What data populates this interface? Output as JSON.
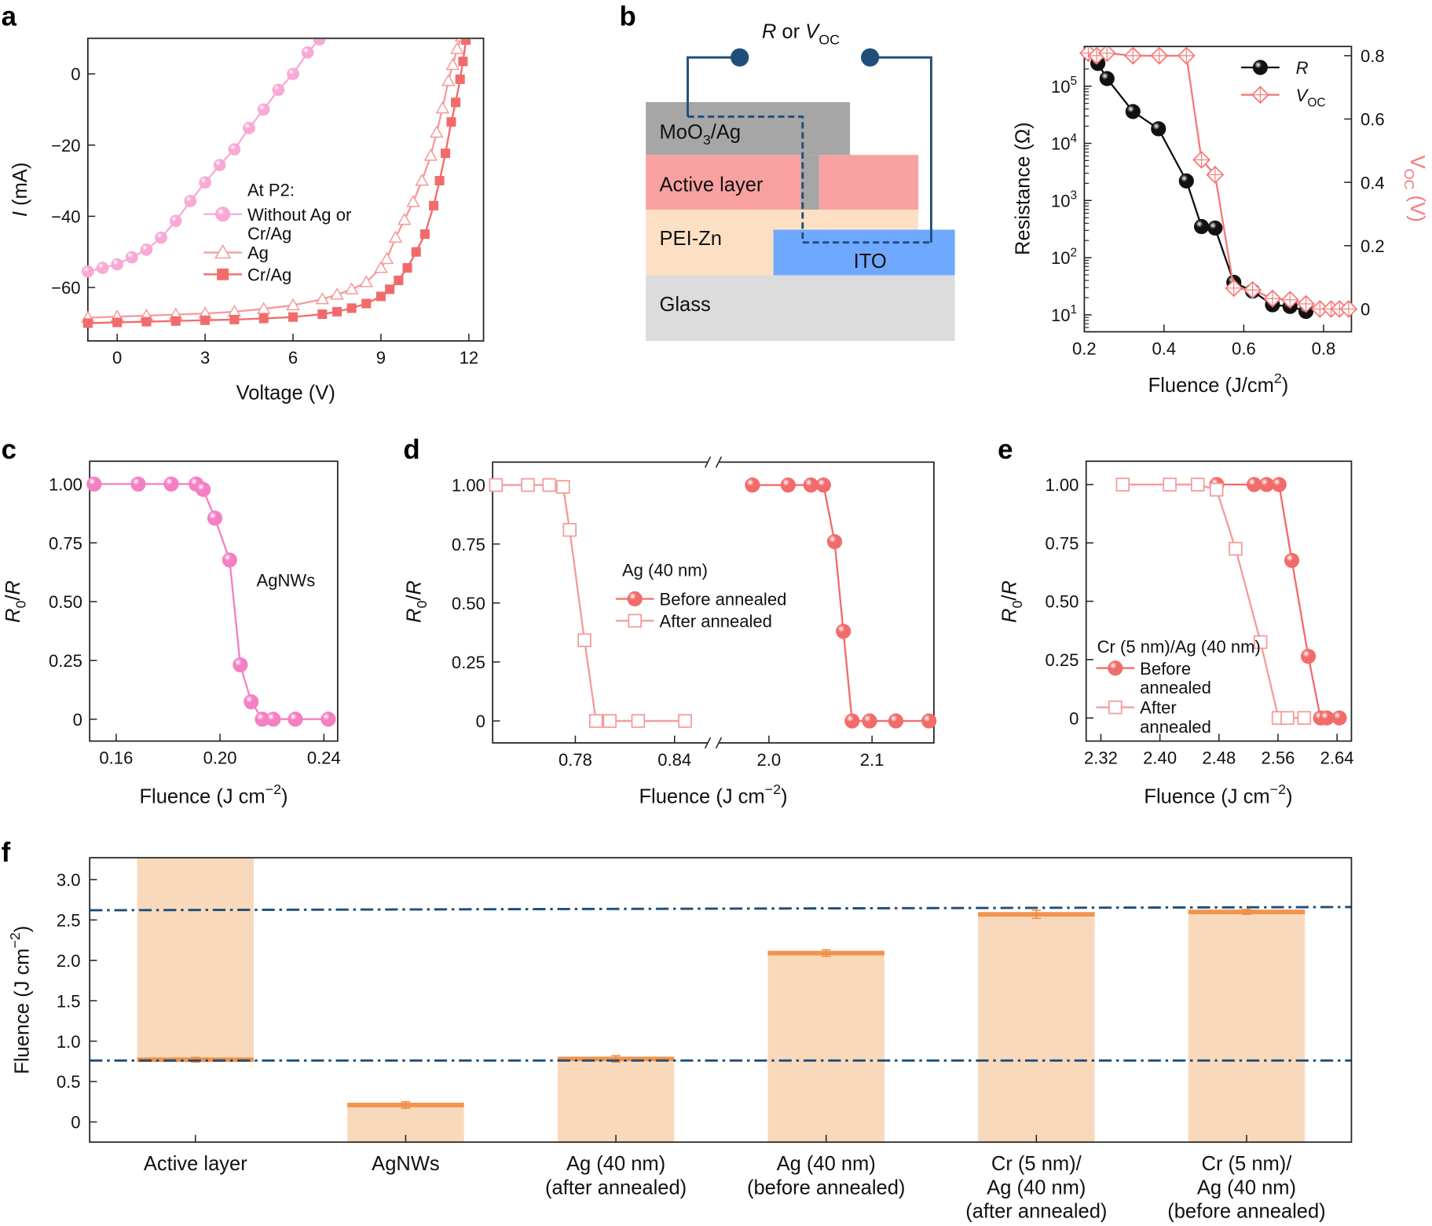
{
  "panel_labels": {
    "a": "a",
    "b": "b",
    "c": "c",
    "d": "d",
    "e": "e",
    "f": "f"
  },
  "diagram_b": {
    "measure_label": "*R* or *V*_{OC}",
    "layers": {
      "top_electrode": "MoO_{3}/Ag",
      "active": "Active layer",
      "pei": "PEI-Zn",
      "ito": "ITO",
      "glass": "Glass"
    },
    "colors": {
      "top_electrode": "#a6a6a6",
      "active": "#f9a1a1",
      "pei": "#fde0c4",
      "ito": "#6fa8ff",
      "glass": "#dcdcdc",
      "wire": "#1f4e79"
    }
  },
  "chart_data": [
    {
      "panel": "a",
      "type": "scatter-line",
      "xlabel": "Voltage (V)",
      "ylabel": "*I* (mA)",
      "xlim": [
        -1,
        12.5
      ],
      "ylim": [
        -75,
        10
      ],
      "xticks": [
        0,
        3,
        6,
        9,
        12
      ],
      "xtick_labels": [
        "0",
        "3",
        "6",
        "9",
        "12"
      ],
      "yticks": [
        0,
        -20,
        -40,
        -60
      ],
      "ytick_labels": [
        "0",
        "−20",
        "−40",
        "−60"
      ],
      "grid": false,
      "legend": {
        "title": "At P2:",
        "placement": "center"
      },
      "series": [
        {
          "name": "Without Ag or\nCr/Ag",
          "marker": "sphere",
          "color": "#f9a9d6",
          "x": [
            -1,
            -0.5,
            0,
            0.5,
            1,
            1.5,
            2,
            2.5,
            3,
            3.5,
            4,
            4.5,
            5,
            5.5,
            6,
            6.5,
            6.9
          ],
          "y": [
            -55.5,
            -54.5,
            -53.5,
            -51.5,
            -49.4,
            -46,
            -41.3,
            -35.7,
            -30.5,
            -25.6,
            -21.2,
            -15.2,
            -10,
            -4.5,
            0,
            6,
            9.7
          ]
        },
        {
          "name": "Ag",
          "marker": "triangle-open",
          "color": "#f59a9a",
          "x": [
            -1,
            0,
            1,
            2,
            3,
            4,
            5,
            6,
            7,
            7.5,
            8,
            8.5,
            9,
            9.2,
            9.5,
            9.8,
            10.1,
            10.4,
            10.7,
            10.9,
            11.1,
            11.3,
            11.45,
            11.6,
            11.75
          ],
          "y": [
            -68.5,
            -68.2,
            -67.9,
            -67.6,
            -67.3,
            -66.8,
            -66,
            -65,
            -63.3,
            -62,
            -60.5,
            -58.5,
            -54.5,
            -52,
            -46,
            -41,
            -36,
            -30,
            -23,
            -16.5,
            -9.7,
            -2,
            2.5,
            7,
            10.5
          ]
        },
        {
          "name": "Cr/Ag",
          "marker": "square",
          "color": "#f26b6b",
          "x": [
            -1,
            0,
            1,
            2,
            3,
            4,
            5,
            6,
            7,
            7.5,
            8,
            8.5,
            9,
            9.3,
            9.6,
            9.9,
            10.2,
            10.5,
            10.8,
            11,
            11.2,
            11.4,
            11.55,
            11.7,
            11.8,
            11.9
          ],
          "y": [
            -70,
            -69.8,
            -69.6,
            -69.4,
            -69.2,
            -69,
            -68.7,
            -68.3,
            -67.5,
            -66.8,
            -65.8,
            -64.5,
            -62.5,
            -60.5,
            -58,
            -54.5,
            -50,
            -45,
            -37,
            -30,
            -22.3,
            -13.5,
            -8,
            -1.5,
            3.5,
            9.5
          ]
        }
      ]
    },
    {
      "panel": "b",
      "type": "scatter-line",
      "xlabel": "Fluence (J/cm^{2})",
      "ylabel": "Resistance (Ω)",
      "ylabel_right": "V_{OC} (V)",
      "xlim": [
        0.2,
        0.87
      ],
      "ylim": [
        5.05,
        495000
      ],
      "y_scale": "log",
      "ylim_right": [
        -0.072,
        0.829
      ],
      "xticks": [
        0.2,
        0.4,
        0.6,
        0.8
      ],
      "xtick_labels": [
        "0.2",
        "0.4",
        "0.6",
        "0.8"
      ],
      "yticks": [
        10,
        100,
        1000,
        10000,
        100000
      ],
      "ytick_labels": [
        "10^{1}",
        "10^{2}",
        "10^{3}",
        "10^{4}",
        "10^{5}"
      ],
      "yticks_right": [
        0,
        0.2,
        0.4,
        0.6,
        0.8
      ],
      "ytick_labels_right": [
        "0",
        "0.2",
        "0.4",
        "0.6",
        "0.8"
      ],
      "grid": false,
      "legend": {
        "placement": "top-right"
      },
      "series": [
        {
          "name": "*R*",
          "axis": "left",
          "marker": "sphere",
          "color": "#111111",
          "x": [
            0.234,
            0.257,
            0.322,
            0.386,
            0.456,
            0.494,
            0.528,
            0.575,
            0.622,
            0.672,
            0.716,
            0.756
          ],
          "y": [
            250000,
            136000,
            36000,
            18000,
            2200,
            350,
            330,
            37,
            26,
            15,
            14,
            11.5
          ]
        },
        {
          "name": "*V*_{OC}",
          "axis": "right",
          "marker": "diamond-cross",
          "color": "#f47a7a",
          "x": [
            0.21,
            0.231,
            0.257,
            0.322,
            0.388,
            0.456,
            0.494,
            0.528,
            0.575,
            0.622,
            0.672,
            0.716,
            0.756,
            0.791,
            0.819,
            0.84,
            0.863
          ],
          "y": [
            0.808,
            0.8,
            0.808,
            0.8,
            0.8,
            0.8,
            0.471,
            0.424,
            0.066,
            0.06,
            0.033,
            0.029,
            0.016,
            0,
            0,
            0,
            0
          ]
        }
      ]
    },
    {
      "panel": "c",
      "type": "scatter-line",
      "xlabel": "Fluence (J cm^{−2})",
      "ylabel": "*R*_{0}/*R*",
      "xlim": [
        0.1498,
        0.2453
      ],
      "ylim": [
        -0.093,
        1.097
      ],
      "xticks": [
        0.16,
        0.2,
        0.24
      ],
      "xtick_labels": [
        "0.16",
        "0.20",
        "0.24"
      ],
      "yticks": [
        0,
        0.25,
        0.5,
        0.75,
        1
      ],
      "ytick_labels": [
        "0",
        "0.25",
        "0.50",
        "0.75",
        "1.00"
      ],
      "grid": false,
      "annotation": "AgNWs",
      "series": [
        {
          "marker": "sphere",
          "color": "#f57fc3",
          "x": [
            0.1515,
            0.1685,
            0.1812,
            0.1908,
            0.1935,
            0.198,
            0.2037,
            0.2078,
            0.212,
            0.2163,
            0.2205,
            0.229,
            0.2417
          ],
          "y": [
            1,
            1,
            1,
            1,
            0.977,
            0.855,
            0.677,
            0.231,
            0.074,
            0,
            0,
            0,
            0
          ]
        }
      ]
    },
    {
      "panel": "d",
      "type": "scatter-line",
      "xlabel": "Fluence (J cm^{−2})",
      "ylabel": "*R*_{0}/*R*",
      "x_segments": [
        [
          0.73,
          0.8634
        ],
        [
          1.946,
          2.16
        ]
      ],
      "x_axis_break": true,
      "ylim": [
        -0.093,
        1.097
      ],
      "xticks": [
        0.78,
        0.84,
        2.0,
        2.1
      ],
      "xtick_labels": [
        "0.78",
        "0.84",
        "2.0",
        "2.1"
      ],
      "yticks": [
        0,
        0.25,
        0.5,
        0.75,
        1
      ],
      "ytick_labels": [
        "0",
        "0.25",
        "0.50",
        "0.75",
        "1.00"
      ],
      "grid": false,
      "legend": {
        "title": "Ag (40 nm)",
        "placement": "center"
      },
      "series": [
        {
          "name": "Before annealed",
          "marker": "sphere",
          "color": "#f26b6b",
          "x": [
            1.984,
            2.0186,
            2.0407,
            2.0529,
            2.0637,
            2.0722,
            2.0807,
            2.0976,
            2.1231,
            2.1553
          ],
          "y": [
            1,
            1,
            1,
            1,
            0.76,
            0.38,
            0,
            0,
            0,
            0
          ]
        },
        {
          "name": "After annealed",
          "marker": "square-open",
          "color": "#f59a9a",
          "x": [
            0.732,
            0.7513,
            0.7642,
            0.7726,
            0.7766,
            0.7855,
            0.7925,
            0.8008,
            0.818,
            0.8463
          ],
          "y": [
            1,
            1,
            1,
            0.992,
            0.81,
            0.342,
            0,
            0,
            0,
            0
          ]
        }
      ]
    },
    {
      "panel": "e",
      "type": "scatter-line",
      "xlabel": "Fluence (J cm^{−2})",
      "ylabel": "*R*_{0}/*R*",
      "xlim": [
        2.3,
        2.6595
      ],
      "ylim": [
        -0.099,
        1.1
      ],
      "xticks": [
        2.32,
        2.4,
        2.48,
        2.56,
        2.64
      ],
      "xtick_labels": [
        "2.32",
        "2.40",
        "2.48",
        "2.56",
        "2.64"
      ],
      "yticks": [
        0,
        0.25,
        0.5,
        0.75,
        1
      ],
      "ytick_labels": [
        "0",
        "0.25",
        "0.50",
        "0.75",
        "1.00"
      ],
      "grid": false,
      "legend": {
        "title": "Cr (5 nm)/Ag (40 nm)",
        "placement": "bottom-left"
      },
      "series": [
        {
          "name": "Before\nannealed",
          "marker": "sphere",
          "color": "#f26b6b",
          "x": [
            2.477,
            2.5276,
            2.5445,
            2.5614,
            2.5787,
            2.6011,
            2.6176,
            2.6262,
            2.6431
          ],
          "y": [
            1,
            1,
            1,
            1,
            0.675,
            0.264,
            0,
            0,
            0
          ]
        },
        {
          "name": "After\nannealed",
          "marker": "square-open",
          "color": "#f59a9a",
          "x": [
            2.3496,
            2.4133,
            2.4512,
            2.4767,
            2.5025,
            2.5363,
            2.5607,
            2.5727,
            2.5955
          ],
          "y": [
            1,
            1,
            1,
            0.978,
            0.725,
            0.325,
            0,
            0,
            0
          ]
        }
      ]
    },
    {
      "panel": "f",
      "type": "bar",
      "categories": [
        "Active layer",
        "AgNWs",
        "Ag (40 nm)\n(after annealed)",
        "Ag (40 nm)\n(before annealed)",
        "Cr (5 nm)/\nAg (40 nm)\n(after annealed)",
        "Cr (5 nm)/\nAg (40 nm)\n(before annealed)"
      ],
      "values": [
        0.77,
        0.21,
        0.78,
        2.09,
        2.57,
        2.6
      ],
      "errors": [
        0.03,
        0.04,
        0.04,
        0.04,
        0.05,
        0.03
      ],
      "bar_extends_above_value": [
        true,
        false,
        false,
        false,
        false,
        false
      ],
      "ylabel": "Fluence (J cm^{−2})",
      "xlabel": "",
      "ylim": [
        -0.25,
        3.27
      ],
      "yticks": [
        0,
        0.5,
        1,
        1.5,
        2,
        2.5,
        3
      ],
      "ytick_labels": [
        "0",
        "0.5",
        "1.0",
        "1.5",
        "2.0",
        "2.5",
        "3.0"
      ],
      "grid": false,
      "reference_lines": [
        {
          "style": "dash-dot",
          "y_left": 2.62,
          "y_right": 2.66
        },
        {
          "style": "dash-dot",
          "y_left": 0.76,
          "y_right": 0.76
        }
      ],
      "colors": {
        "bar": "#f9d9bc",
        "value_line": "#ef8a3c",
        "reference_line": "#1f4e79"
      }
    }
  ]
}
